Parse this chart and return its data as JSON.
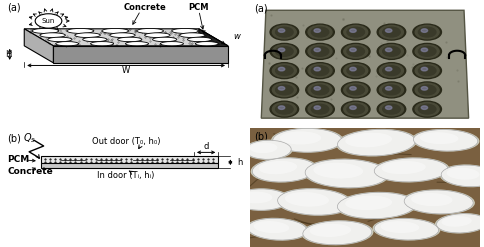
{
  "fig_width": 4.85,
  "fig_height": 2.47,
  "dpi": 100,
  "bg_color": "#ffffff",
  "panel_a_label": "(a)",
  "panel_b_label": "(b)",
  "sun_text": "Sun",
  "concrete_label": "Concrete",
  "pcm_label": "PCM",
  "H_label": "H",
  "W_label": "W",
  "w_label": "w",
  "Qs_label": "Q_s",
  "outdoor_label": "Out door (T₀, h₀)",
  "indoor_label": "In door (Tᵢ, hᵢ)",
  "d_label": "d",
  "h_label": "h",
  "photo_a_label": "(a)",
  "photo_b_label": "(b)",
  "slab_top_color": "#d4d4d4",
  "slab_side_color": "#909090",
  "slab_right_color": "#222222",
  "slab_bottom_color": "#b0b0b0",
  "ellipse_color": "#ffffff",
  "cross_pcm_color": "#e8e8e8",
  "cross_conc_color": "#c8c8c8",
  "photo_a_slab_color": "#8a8a72",
  "photo_a_hole_dark": "#3a3a2a",
  "photo_a_hole_mid": "#5a5a4a",
  "photo_a_bg": "#b08060",
  "photo_b_ground_color": "#7a6040",
  "photo_b_pcm_color": "#f0f0ee"
}
